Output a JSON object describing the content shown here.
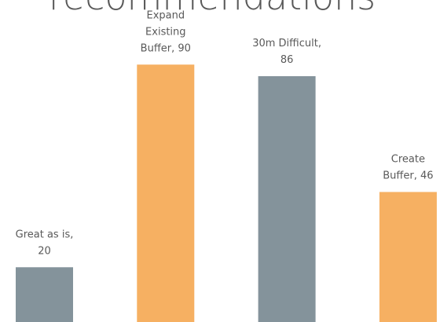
{
  "chart_data": {
    "type": "bar",
    "title": "recommendations",
    "values": [
      20,
      90,
      86,
      46
    ],
    "value_labels": [
      [
        "Great as is,",
        "20"
      ],
      [
        "Expand",
        "Existing",
        "Buffer, 90"
      ],
      [
        "30m Difficult,",
        "86"
      ],
      [
        "Create",
        "Buffer, 46"
      ]
    ],
    "colors": [
      "#84939b",
      "#f6b062",
      "#84939b",
      "#f6b062"
    ],
    "ylim": [
      0,
      100
    ]
  }
}
